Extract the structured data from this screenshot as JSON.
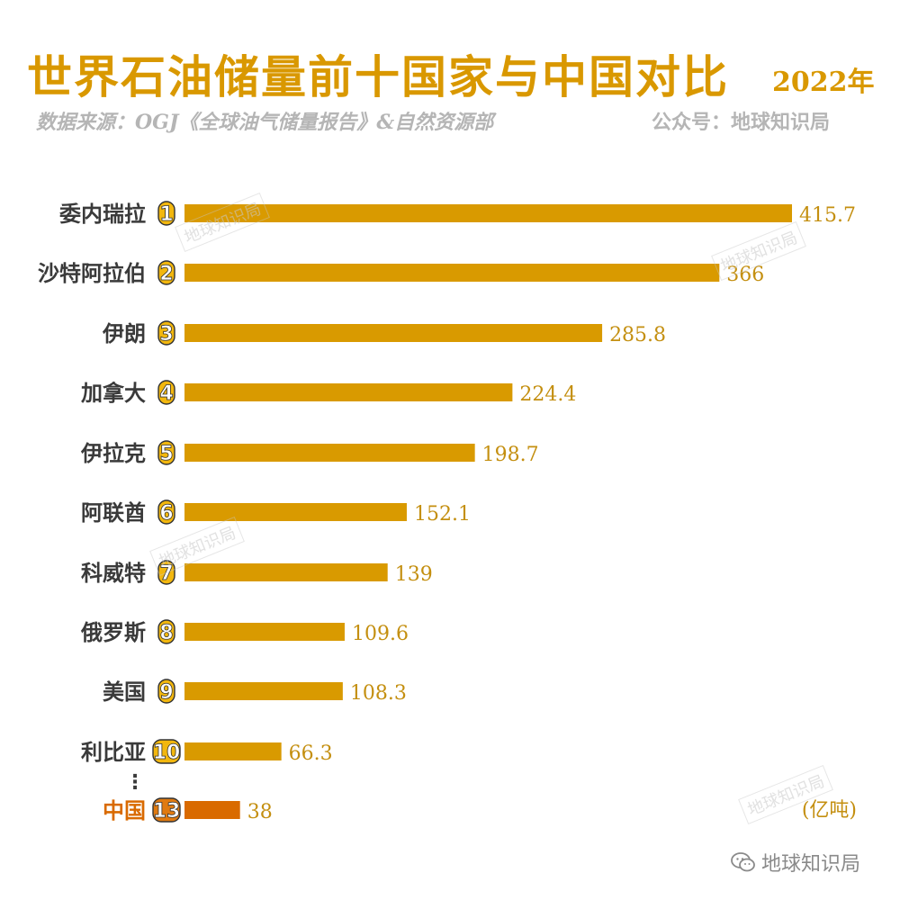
{
  "header": {
    "title_part1": "世界石油",
    "title_emph": "储量",
    "title_part2": "前十国家与中国对比",
    "year": "2022年",
    "source": "数据来源：OGJ《全球油气储量报告》&自然资源部",
    "account": "公众号：地球知识局"
  },
  "watermark_text": "地球知识局",
  "brand_text": "地球知识局",
  "colors": {
    "bar": "#d99a00",
    "bar_highlight": "#d96a00",
    "value_label": "#c48f10",
    "country_label": "#3a3a3a",
    "country_highlight": "#d96a00",
    "badge_fill": "#f2b70e",
    "badge_highlight_fill": "#e07a10",
    "badge_stroke": "#333333"
  },
  "chart_data": {
    "type": "bar",
    "orientation": "horizontal",
    "unit_label": "(亿吨)",
    "ellipsis": "⋮",
    "categories": [
      "委内瑞拉",
      "沙特阿拉伯",
      "伊朗",
      "加拿大",
      "伊拉克",
      "阿联酋",
      "科威特",
      "俄罗斯",
      "美国",
      "利比亚",
      "中国"
    ],
    "ranks": [
      "1",
      "2",
      "3",
      "4",
      "5",
      "6",
      "7",
      "8",
      "9",
      "10",
      "13"
    ],
    "values": [
      415.7,
      366,
      285.8,
      224.4,
      198.7,
      152.1,
      139,
      109.6,
      108.3,
      66.3,
      38
    ],
    "value_labels": [
      "415.7",
      "366",
      "285.8",
      "224.4",
      "198.7",
      "152.1",
      "139",
      "109.6",
      "108.3",
      "66.3",
      "38"
    ],
    "highlight": "中国",
    "xlim": [
      0,
      415.7
    ],
    "grid": false,
    "legend": "none"
  }
}
